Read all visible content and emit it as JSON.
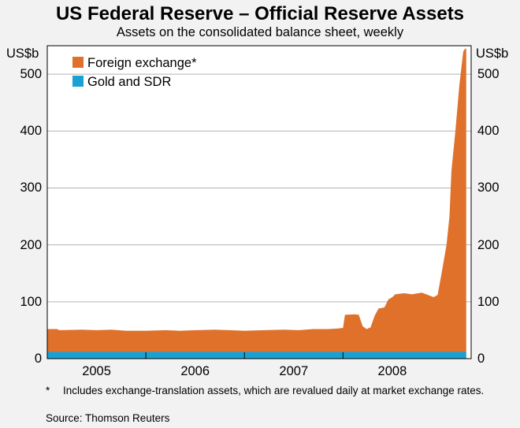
{
  "chart_data": {
    "type": "area",
    "title": "US Federal Reserve – Official Reserve Assets",
    "subtitle": "Assets on the consolidated balance sheet, weekly",
    "ylabel_left": "US$b",
    "ylabel_right": "US$b",
    "ylim": [
      0,
      550
    ],
    "yticks": [
      "0",
      "100",
      "200",
      "300",
      "400",
      "500"
    ],
    "xlim": [
      2004.5,
      2008.8
    ],
    "x_tick_labels": [
      "2005",
      "2006",
      "2007",
      "2008"
    ],
    "x_tick_positions": [
      2005,
      2006,
      2007,
      2008
    ],
    "x_boundaries": [
      2005.5,
      2006.5,
      2007.5
    ],
    "legend_position": "top-left",
    "series": [
      {
        "name": "Foreign exchange*",
        "color": "#e0712b",
        "stack": "top",
        "total_points": [
          [
            2004.5,
            52
          ],
          [
            2004.6,
            52
          ],
          [
            2004.62,
            50
          ],
          [
            2004.85,
            51
          ],
          [
            2005.0,
            50
          ],
          [
            2005.15,
            51
          ],
          [
            2005.3,
            49
          ],
          [
            2005.5,
            49
          ],
          [
            2005.7,
            50
          ],
          [
            2005.85,
            49
          ],
          [
            2006.0,
            50
          ],
          [
            2006.2,
            51
          ],
          [
            2006.35,
            50
          ],
          [
            2006.5,
            49
          ],
          [
            2006.7,
            50
          ],
          [
            2006.9,
            51
          ],
          [
            2007.05,
            50
          ],
          [
            2007.2,
            52
          ],
          [
            2007.35,
            52
          ],
          [
            2007.45,
            53
          ],
          [
            2007.5,
            54
          ],
          [
            2007.52,
            77
          ],
          [
            2007.62,
            78
          ],
          [
            2007.66,
            77
          ],
          [
            2007.7,
            57
          ],
          [
            2007.74,
            52
          ],
          [
            2007.78,
            55
          ],
          [
            2007.82,
            75
          ],
          [
            2007.86,
            88
          ],
          [
            2007.92,
            90
          ],
          [
            2007.96,
            104
          ],
          [
            2008.0,
            108
          ],
          [
            2008.03,
            113
          ],
          [
            2008.12,
            115
          ],
          [
            2008.2,
            113
          ],
          [
            2008.3,
            116
          ],
          [
            2008.36,
            112
          ],
          [
            2008.42,
            108
          ],
          [
            2008.46,
            112
          ],
          [
            2008.5,
            150
          ],
          [
            2008.55,
            200
          ],
          [
            2008.58,
            250
          ],
          [
            2008.6,
            330
          ],
          [
            2008.64,
            400
          ],
          [
            2008.68,
            480
          ],
          [
            2008.72,
            540
          ],
          [
            2008.74,
            545
          ],
          [
            2008.75,
            545
          ]
        ]
      },
      {
        "name": "Gold and SDR",
        "color": "#1aa1d4",
        "stack": "bottom",
        "value": 12
      }
    ],
    "footnote_marker": "*",
    "footnote": "Includes exchange-translation assets, which are revalued daily at market exchange rates.",
    "source": "Source:  Thomson Reuters"
  }
}
